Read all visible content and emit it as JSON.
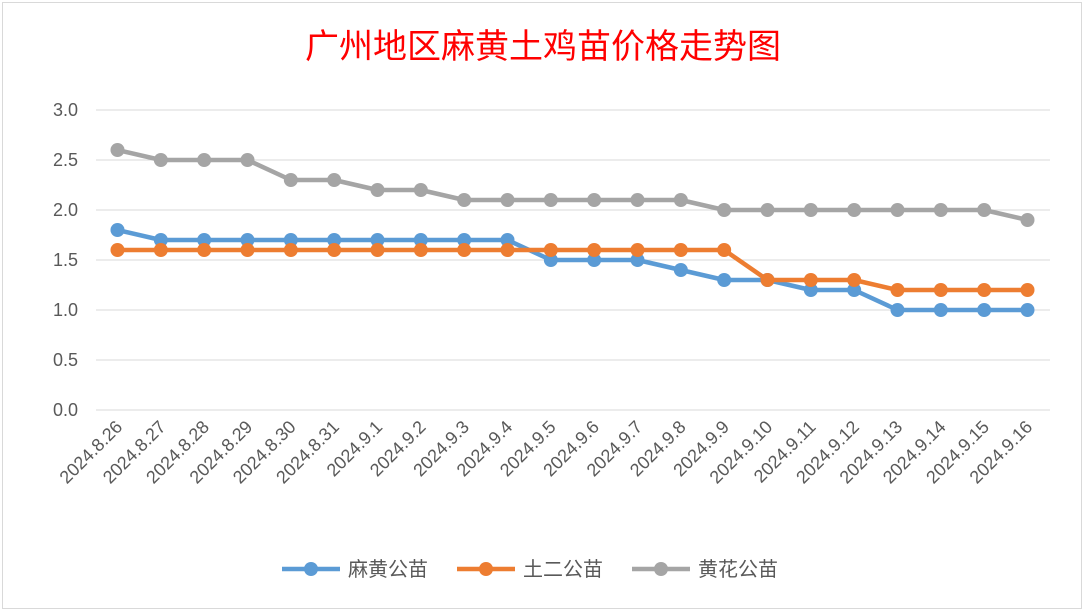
{
  "chart_data": {
    "type": "line",
    "title": "广州地区麻黄土鸡苗价格走势图",
    "xlabel": "",
    "ylabel": "",
    "ylim": [
      0,
      3.0
    ],
    "yticks": [
      "0.0",
      "0.5",
      "1.0",
      "1.5",
      "2.0",
      "2.5",
      "3.0"
    ],
    "grid": true,
    "legend_position": "bottom",
    "categories": [
      "2024.8.26",
      "2024.8.27",
      "2024.8.28",
      "2024.8.29",
      "2024.8.30",
      "2024.8.31",
      "2024.9.1",
      "2024.9.2",
      "2024.9.3",
      "2024.9.4",
      "2024.9.5",
      "2024.9.6",
      "2024.9.7",
      "2024.9.8",
      "2024.9.9",
      "2024.9.10",
      "2024.9.11",
      "2024.9.12",
      "2024.9.13",
      "2024.9.14",
      "2024.9.15",
      "2024.9.16"
    ],
    "series": [
      {
        "name": "麻黄公苗",
        "color": "#5b9bd5",
        "values": [
          1.8,
          1.7,
          1.7,
          1.7,
          1.7,
          1.7,
          1.7,
          1.7,
          1.7,
          1.7,
          1.5,
          1.5,
          1.5,
          1.4,
          1.3,
          1.3,
          1.2,
          1.2,
          1.0,
          1.0,
          1.0,
          1.0
        ]
      },
      {
        "name": "土二公苗",
        "color": "#ed7d31",
        "values": [
          1.6,
          1.6,
          1.6,
          1.6,
          1.6,
          1.6,
          1.6,
          1.6,
          1.6,
          1.6,
          1.6,
          1.6,
          1.6,
          1.6,
          1.6,
          1.3,
          1.3,
          1.3,
          1.2,
          1.2,
          1.2,
          1.2
        ]
      },
      {
        "name": "黄花公苗",
        "color": "#a5a5a5",
        "values": [
          2.6,
          2.5,
          2.5,
          2.5,
          2.3,
          2.3,
          2.2,
          2.2,
          2.1,
          2.1,
          2.1,
          2.1,
          2.1,
          2.1,
          2.0,
          2.0,
          2.0,
          2.0,
          2.0,
          2.0,
          2.0,
          1.9
        ]
      }
    ]
  }
}
